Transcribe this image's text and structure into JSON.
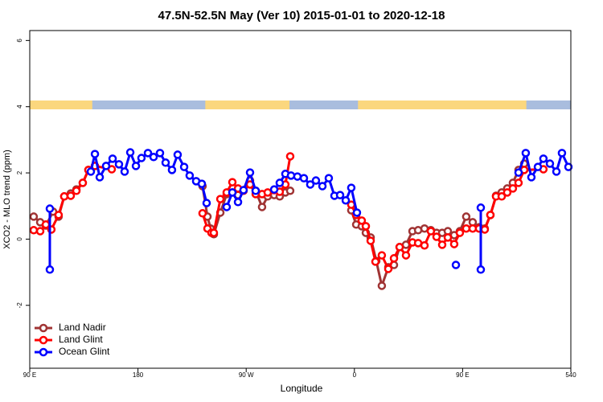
{
  "chart_data": {
    "type": "line",
    "title": "47.5N-52.5N May (Ver 10)   2015-01-01 to 2020-12-18",
    "x_label": "Longitude",
    "y_label": "XCO2 - MLO trend (ppm)",
    "xlim": [
      90,
      540
    ],
    "xticks": [
      {
        "value": 90,
        "label": "90 E"
      },
      180,
      {
        "value": 270,
        "label": "90 W"
      },
      {
        "value": 360,
        "label": "0"
      },
      {
        "value": 450,
        "label": "90 E"
      },
      540
    ],
    "ylim": [
      -3.9,
      6.3
    ],
    "yticks": [
      -2,
      0,
      2,
      4,
      6
    ],
    "legend": "bottom-left",
    "land_color": "#fbd77e",
    "ocean_color": "#a9bdde",
    "land_mask": [
      [
        90,
        142
      ],
      [
        236,
        306
      ],
      [
        363,
        503
      ]
    ],
    "series": [
      {
        "name": "Land Nadir",
        "color": "#a03434",
        "x": [
          93.3,
          98.7,
          103.4,
          109.4,
          114,
          118.7,
          124.1,
          128.8,
          134.1,
          138.8,
          144.2,
          null,
          233.7,
          237.8,
          240.4,
          243.1,
          248.5,
          253.8,
          258.5,
          263.2,
          267.8,
          273.2,
          277.9,
          283.2,
          287.9,
          293.3,
          297.9,
          302.6,
          306.6,
          null,
          357.4,
          361.5,
          366.1,
          369.5,
          373.5,
          378.2,
          382.8,
          388.2,
          392.9,
          397.6,
          402.9,
          408.3,
          413,
          418.3,
          423.6,
          428.3,
          433,
          437.7,
          443,
          447.7,
          453,
          458.4,
          463.7,
          468.4,
          473.1,
          477.8,
          482.5,
          487.1,
          491.8,
          496.5,
          501.2
        ],
        "values": [
          0.68,
          0.51,
          0.41,
          0.83,
          0.68,
          1.29,
          1.38,
          1.5,
          1.7,
          2.09,
          2.21,
          null,
          1.6,
          0.68,
          0.32,
          0.15,
          0.8,
          1.36,
          1.41,
          1.33,
          1.48,
          1.77,
          1.46,
          0.97,
          1.29,
          1.33,
          1.29,
          1.41,
          1.46,
          null,
          0.87,
          0.44,
          0.39,
          0.19,
          0.05,
          -0.66,
          -1.41,
          -0.85,
          -0.78,
          -0.24,
          -0.17,
          0.24,
          0.27,
          0.32,
          0.27,
          0.19,
          0.19,
          0.24,
          0.12,
          0.24,
          0.68,
          0.51,
          0.36,
          0.32,
          0.73,
          1.31,
          1.41,
          1.53,
          1.7,
          2.09,
          2.28
        ]
      },
      {
        "name": "Land Glint",
        "color": "#ff0000",
        "x": [
          93.3,
          98.7,
          103.4,
          108,
          114,
          118.7,
          124.1,
          128.8,
          134.1,
          138.8,
          144.2,
          158.2,
          null,
          233.7,
          237.8,
          241.1,
          243.1,
          248.5,
          253.8,
          258.5,
          263.2,
          267.8,
          273.2,
          277.9,
          283.2,
          287.9,
          293.3,
          297.9,
          302.6,
          306.6,
          null,
          357.4,
          361.5,
          366.1,
          369.5,
          373.5,
          377.5,
          382.8,
          388.2,
          392.9,
          397.6,
          402.9,
          408.3,
          413,
          418.3,
          423.6,
          428.3,
          433,
          437.7,
          443,
          447.7,
          453,
          458.4,
          463.7,
          468.4,
          473.1,
          477.8,
          482.5,
          487.1,
          491.8,
          496.5,
          501.2,
          517.2
        ],
        "values": [
          0.27,
          0.24,
          0.44,
          0.29,
          0.73,
          1.29,
          1.31,
          1.46,
          1.7,
          2.09,
          2.21,
          2.11,
          null,
          0.78,
          0.32,
          0.19,
          0.19,
          1.21,
          1.41,
          1.72,
          1.53,
          1.46,
          1.65,
          1.36,
          1.36,
          1.41,
          1.48,
          1.43,
          1.65,
          2.5,
          null,
          1.04,
          0.73,
          0.56,
          0.39,
          -0.05,
          -0.68,
          -0.49,
          -0.9,
          -0.58,
          -0.24,
          -0.49,
          -0.1,
          -0.12,
          -0.19,
          0.24,
          0.07,
          -0.17,
          0.05,
          -0.15,
          0.19,
          0.32,
          0.32,
          0.32,
          0.29,
          0.73,
          1.29,
          1.29,
          1.41,
          1.53,
          1.7,
          2.09,
          2.11
        ]
      },
      {
        "name": "Ocean Glint",
        "color": "#0000ff",
        "x": [
          106.7,
          106.7,
          null,
          140.8,
          144.2,
          148.2,
          153.5,
          158.9,
          164.2,
          168.9,
          173.6,
          178.3,
          182.9,
          188.3,
          193,
          198.3,
          203,
          208.3,
          213,
          218.4,
          223,
          228.4,
          233.1,
          237.1,
          null,
          253.8,
          258.5,
          263.2,
          267.8,
          273.2,
          277.9,
          null,
          293.3,
          297.9,
          302.6,
          307.3,
          312.6,
          318,
          323.3,
          328,
          333.4,
          338.7,
          343.4,
          348.1,
          352.8,
          357.4,
          362.1,
          null,
          444.4,
          null,
          465.1,
          465.1,
          null,
          496.5,
          502.5,
          507.2,
          512.6,
          517.2,
          522.6,
          528,
          532.6,
          538
        ],
        "values": [
          -0.92,
          0.92,
          null,
          2.04,
          2.57,
          1.87,
          2.21,
          2.43,
          2.26,
          2.04,
          2.62,
          2.21,
          2.45,
          2.6,
          2.48,
          2.6,
          2.31,
          2.09,
          2.55,
          2.18,
          1.92,
          1.75,
          1.67,
          1.09,
          null,
          0.97,
          1.41,
          1.12,
          1.48,
          2.01,
          1.46,
          null,
          1.5,
          1.7,
          1.97,
          1.92,
          1.89,
          1.84,
          1.65,
          1.77,
          1.6,
          1.84,
          1.31,
          1.33,
          1.17,
          1.55,
          0.8,
          null,
          -0.78,
          null,
          -0.92,
          0.95,
          null,
          2.01,
          2.6,
          1.87,
          2.18,
          2.43,
          2.28,
          2.04,
          2.6,
          2.18
        ]
      }
    ]
  }
}
